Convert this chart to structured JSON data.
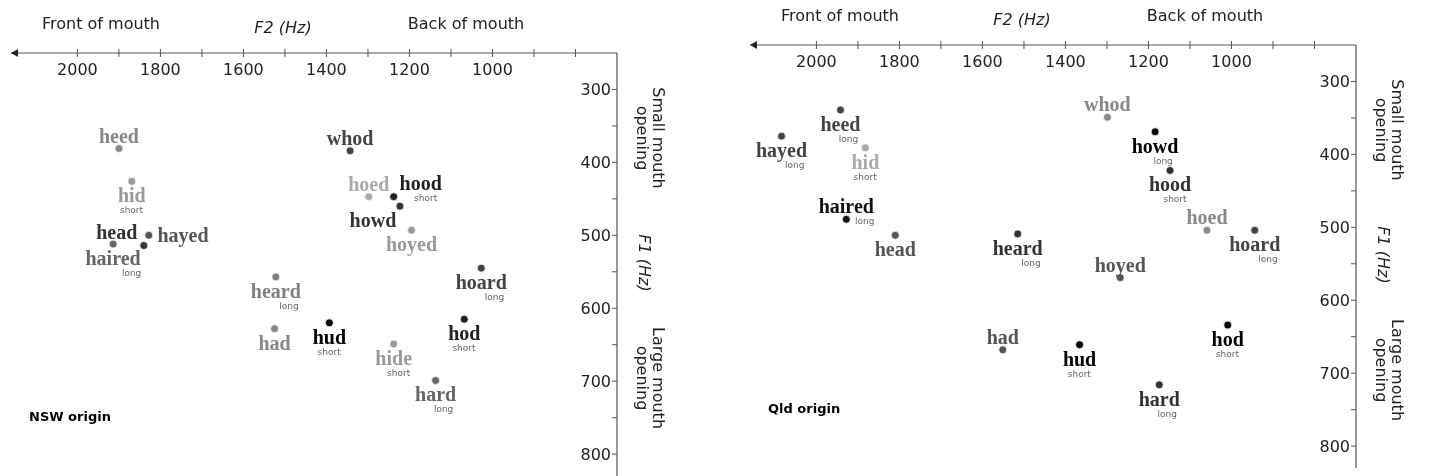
{
  "chart_data": [
    {
      "type": "scatter",
      "title": "NSW origin",
      "xlabel": "F2 (Hz)",
      "ylabel": "F1 (Hz)",
      "xlim": [
        2160,
        700
      ],
      "ylim": [
        830,
        250
      ],
      "xticks": [
        2000,
        {
          "value": 1900,
          "label": null
        },
        1800,
        {
          "value": 1700,
          "label": null
        },
        1600,
        {
          "value": 1500,
          "label": null
        },
        1400,
        {
          "value": 1300,
          "label": null
        },
        1200,
        {
          "value": 1100,
          "label": null
        },
        1000,
        {
          "value": 900,
          "label": null
        },
        {
          "value": 800,
          "label": null
        }
      ],
      "yticks": [
        300,
        {
          "value": 350,
          "label": null
        },
        400,
        {
          "value": 450,
          "label": null
        },
        500,
        {
          "value": 550,
          "label": null
        },
        600,
        {
          "value": 650,
          "label": null
        },
        700,
        {
          "value": 750,
          "label": null
        },
        800
      ],
      "annotations": [
        "Front of mouth",
        "Back of mouth",
        "Small mouth opening",
        "Large mouth opening",
        {
          "text": "short",
          "x": 1869,
          "y": 426
        },
        {
          "text": "long",
          "x": 1914,
          "y": 512
        },
        {
          "text": "long",
          "x": 1522,
          "y": 557
        },
        {
          "text": "short",
          "x": 1393,
          "y": 620
        },
        {
          "text": "short",
          "x": 1238,
          "y": 447
        },
        {
          "text": "long",
          "x": 1027,
          "y": 545
        },
        {
          "text": "short",
          "x": 1068,
          "y": 615
        },
        {
          "text": "short",
          "x": 1238,
          "y": 649
        },
        {
          "text": "long",
          "x": 1137,
          "y": 699
        }
      ],
      "series": [
        {
          "name": "heed",
          "color": "#888888",
          "x": [
            1900
          ],
          "values": [
            381
          ]
        },
        {
          "name": "hid",
          "color": "#999999",
          "x": [
            1869
          ],
          "values": [
            426
          ]
        },
        {
          "name": "haired",
          "color": "#666666",
          "x": [
            1914
          ],
          "values": [
            512
          ]
        },
        {
          "name": "hayed",
          "color": "#555555",
          "x": [
            1828
          ],
          "values": [
            500
          ]
        },
        {
          "name": "head",
          "color": "#333333",
          "x": [
            1840
          ],
          "values": [
            514
          ]
        },
        {
          "name": "heard",
          "color": "#808080",
          "x": [
            1522
          ],
          "values": [
            557
          ]
        },
        {
          "name": "had",
          "color": "#888888",
          "x": [
            1525
          ],
          "values": [
            628
          ]
        },
        {
          "name": "hud",
          "color": "#000000",
          "x": [
            1393
          ],
          "values": [
            620
          ]
        },
        {
          "name": "whod",
          "color": "#444444",
          "x": [
            1343
          ],
          "values": [
            384
          ]
        },
        {
          "name": "hoed",
          "color": "#aaaaaa",
          "x": [
            1298
          ],
          "values": [
            447
          ]
        },
        {
          "name": "hood",
          "color": "#222222",
          "x": [
            1238
          ],
          "values": [
            447
          ]
        },
        {
          "name": "howd",
          "color": "#333333",
          "x": [
            1223
          ],
          "values": [
            460
          ]
        },
        {
          "name": "hoyed",
          "color": "#999999",
          "x": [
            1195
          ],
          "values": [
            493
          ]
        },
        {
          "name": "hoard",
          "color": "#444444",
          "x": [
            1027
          ],
          "values": [
            545
          ]
        },
        {
          "name": "hod",
          "color": "#222222",
          "x": [
            1068
          ],
          "values": [
            615
          ]
        },
        {
          "name": "hide",
          "color": "#999999",
          "x": [
            1238
          ],
          "values": [
            649
          ]
        },
        {
          "name": "hard",
          "color": "#666666",
          "x": [
            1137
          ],
          "values": [
            699
          ]
        }
      ]
    },
    {
      "type": "scatter",
      "title": "Qld origin",
      "xlabel": "F2 (Hz)",
      "ylabel": "F1 (Hz)",
      "xlim": [
        2160,
        700
      ],
      "ylim": [
        830,
        250
      ],
      "xticks": [
        2000,
        {
          "value": 1900,
          "label": null
        },
        1800,
        {
          "value": 1700,
          "label": null
        },
        1600,
        {
          "value": 1500,
          "label": null
        },
        1400,
        {
          "value": 1300,
          "label": null
        },
        1200,
        {
          "value": 1100,
          "label": null
        },
        1000,
        {
          "value": 900,
          "label": null
        },
        {
          "value": 800,
          "label": null
        }
      ],
      "yticks": [
        300,
        {
          "value": 350,
          "label": null
        },
        400,
        {
          "value": 450,
          "label": null
        },
        500,
        {
          "value": 550,
          "label": null
        },
        600,
        {
          "value": 650,
          "label": null
        },
        700,
        {
          "value": 750,
          "label": null
        },
        800
      ],
      "annotations": [
        "Front of mouth",
        "Back of mouth",
        "Small mouth opening",
        "Large mouth opening",
        {
          "text": "long",
          "x": 1942,
          "y": 339
        },
        {
          "text": "long",
          "x": 2084,
          "y": 375
        },
        {
          "text": "short",
          "x": 1882,
          "y": 391
        },
        {
          "text": "long",
          "x": 1928,
          "y": 489
        },
        {
          "text": "long",
          "x": 1515,
          "y": 509
        },
        {
          "text": "short",
          "x": 1366,
          "y": 661
        },
        {
          "text": "long",
          "x": 1184,
          "y": 369
        },
        {
          "text": "short",
          "x": 1148,
          "y": 422
        },
        {
          "text": "long",
          "x": 944,
          "y": 504
        },
        {
          "text": "short",
          "x": 1009,
          "y": 634
        },
        {
          "text": "long",
          "x": 1174,
          "y": 716
        }
      ],
      "series": [
        {
          "name": "heed",
          "color": "#444444",
          "x": [
            1942
          ],
          "values": [
            339
          ]
        },
        {
          "name": "hayed",
          "color": "#444444",
          "x": [
            2084
          ],
          "values": [
            375
          ]
        },
        {
          "name": "hid",
          "color": "#aaaaaa",
          "x": [
            1882
          ],
          "values": [
            391
          ]
        },
        {
          "name": "haired",
          "color": "#111111",
          "x": [
            1928
          ],
          "values": [
            489
          ]
        },
        {
          "name": "head",
          "color": "#555555",
          "x": [
            1810
          ],
          "values": [
            511
          ]
        },
        {
          "name": "heard",
          "color": "#333333",
          "x": [
            1515
          ],
          "values": [
            509
          ]
        },
        {
          "name": "had",
          "color": "#555555",
          "x": [
            1551
          ],
          "values": [
            668
          ]
        },
        {
          "name": "hud",
          "color": "#000000",
          "x": [
            1366
          ],
          "values": [
            661
          ]
        },
        {
          "name": "whod",
          "color": "#888888",
          "x": [
            1299
          ],
          "values": [
            349
          ]
        },
        {
          "name": "howd",
          "color": "#000000",
          "x": [
            1184
          ],
          "values": [
            369
          ]
        },
        {
          "name": "hood",
          "color": "#333333",
          "x": [
            1148
          ],
          "values": [
            422
          ]
        },
        {
          "name": "hoed",
          "color": "#888888",
          "x": [
            1059
          ],
          "values": [
            504
          ]
        },
        {
          "name": "hoard",
          "color": "#444444",
          "x": [
            944
          ],
          "values": [
            504
          ]
        },
        {
          "name": "hoyed",
          "color": "#555555",
          "x": [
            1268
          ],
          "values": [
            569
          ]
        },
        {
          "name": "hod",
          "color": "#000000",
          "x": [
            1009
          ],
          "values": [
            634
          ]
        },
        {
          "name": "hard",
          "color": "#333333",
          "x": [
            1174
          ],
          "values": [
            716
          ]
        }
      ]
    }
  ]
}
